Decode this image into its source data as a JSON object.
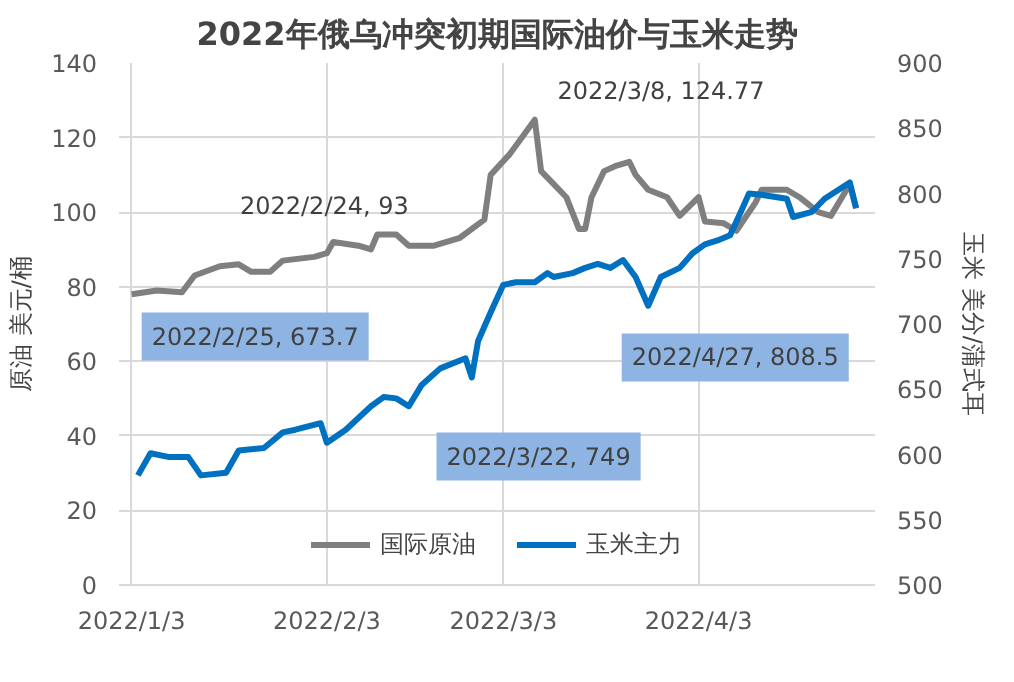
{
  "chart_data": {
    "type": "line",
    "title": "2022年俄乌冲突初期国际油价与玉米走势",
    "ylabel": "原油 美元/桶",
    "y2label": "玉米 美分/蒲式耳",
    "xlim": [
      "2022-01-01",
      "2022-05-01"
    ],
    "xticks": [
      {
        "value": "2022-01-03",
        "label": "2022/1/3"
      },
      {
        "value": "2022-02-03",
        "label": "2022/2/3"
      },
      {
        "value": "2022-03-03",
        "label": "2022/3/3"
      },
      {
        "value": "2022-04-03",
        "label": "2022/4/3"
      }
    ],
    "ylim": [
      0,
      140
    ],
    "yticks": [
      0,
      20,
      40,
      60,
      80,
      100,
      120,
      140
    ],
    "y2lim": [
      500,
      900
    ],
    "y2ticks": [
      500,
      550,
      600,
      650,
      700,
      750,
      800,
      850,
      900
    ],
    "grid": true,
    "legend": "bottom",
    "line_style": "solid",
    "marker": "none",
    "series": [
      {
        "name": "国际原油",
        "color": "#7f7f7f",
        "x": [
          "2022-01-03",
          "2022-01-07",
          "2022-01-11",
          "2022-01-13",
          "2022-01-17",
          "2022-01-20",
          "2022-01-22",
          "2022-01-25",
          "2022-01-27",
          "2022-02-01",
          "2022-02-03",
          "2022-02-04",
          "2022-02-08",
          "2022-02-10",
          "2022-02-11",
          "2022-02-14",
          "2022-02-16",
          "2022-02-20",
          "2022-02-24",
          "2022-02-28",
          "2022-03-01",
          "2022-03-04",
          "2022-03-08",
          "2022-03-09",
          "2022-03-11",
          "2022-03-13",
          "2022-03-15",
          "2022-03-16",
          "2022-03-17",
          "2022-03-19",
          "2022-03-21",
          "2022-03-23",
          "2022-03-24",
          "2022-03-26",
          "2022-03-29",
          "2022-03-31",
          "2022-04-03",
          "2022-04-04",
          "2022-04-07",
          "2022-04-09",
          "2022-04-12",
          "2022-04-13",
          "2022-04-17",
          "2022-04-19",
          "2022-04-22",
          "2022-04-24",
          "2022-04-27",
          "2022-04-28"
        ],
        "values": [
          78,
          79,
          78.5,
          83,
          85.5,
          86,
          84,
          84,
          87,
          88,
          89,
          92,
          91,
          90,
          94,
          94,
          91,
          91,
          93,
          98,
          110,
          115.5,
          124.77,
          111,
          107.5,
          104,
          95.5,
          95.5,
          104,
          111,
          112.5,
          113.5,
          110,
          106,
          104,
          99,
          104,
          97.5,
          97,
          95,
          102.5,
          106,
          106,
          104,
          100,
          99,
          107.5,
          101
        ]
      },
      {
        "name": "玉米主力",
        "color": "#0070c0",
        "axis": "y2",
        "x": [
          "2022-01-04",
          "2022-01-06",
          "2022-01-09",
          "2022-01-12",
          "2022-01-14",
          "2022-01-18",
          "2022-01-20",
          "2022-01-24",
          "2022-01-27",
          "2022-01-29",
          "2022-02-02",
          "2022-02-03",
          "2022-02-06",
          "2022-02-10",
          "2022-02-12",
          "2022-02-14",
          "2022-02-16",
          "2022-02-18",
          "2022-02-21",
          "2022-02-25",
          "2022-02-26",
          "2022-02-27",
          "2022-03-01",
          "2022-03-03",
          "2022-03-05",
          "2022-03-08",
          "2022-03-10",
          "2022-03-11",
          "2022-03-14",
          "2022-03-16",
          "2022-03-18",
          "2022-03-20",
          "2022-03-22",
          "2022-03-24",
          "2022-03-26",
          "2022-03-28",
          "2022-03-31",
          "2022-04-02",
          "2022-04-04",
          "2022-04-06",
          "2022-04-08",
          "2022-04-10",
          "2022-04-11",
          "2022-04-13",
          "2022-04-17",
          "2022-04-18",
          "2022-04-21",
          "2022-04-23",
          "2022-04-27",
          "2022-04-28"
        ],
        "values": [
          584,
          601,
          598,
          598,
          584,
          586,
          603,
          605,
          617,
          619,
          624,
          609,
          619,
          637,
          644,
          643,
          637,
          653,
          666,
          673.7,
          659,
          687,
          709,
          730,
          732,
          732,
          739,
          736,
          739,
          743,
          746,
          743,
          749,
          736,
          714,
          736,
          743,
          754,
          761,
          764,
          768,
          789,
          800,
          799,
          796,
          782,
          786,
          796,
          808.5,
          789
        ]
      }
    ],
    "annotations": [
      "2022/2/24, 93",
      "2022/3/8, 124.77",
      "2022/2/25, 673.7",
      "2022/3/22, 749",
      "2022/4/27, 808.5"
    ]
  }
}
